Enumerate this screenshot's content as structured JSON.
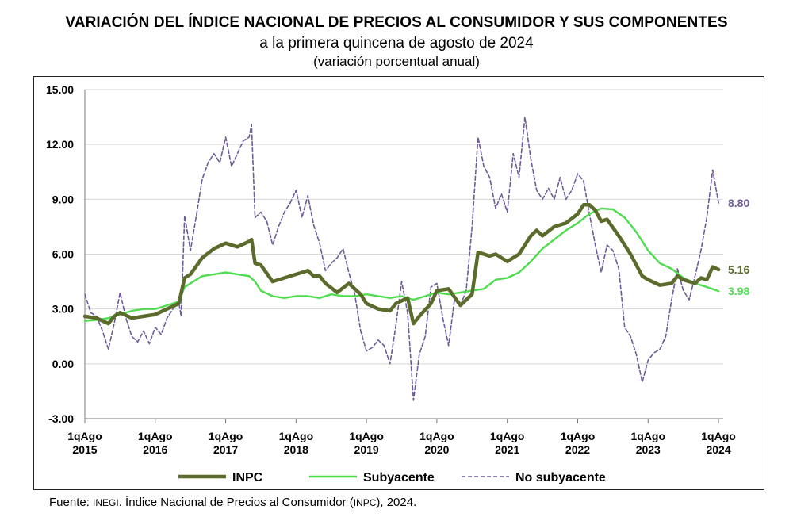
{
  "title": "VARIACIÓN DEL ÍNDICE NACIONAL DE PRECIOS AL CONSUMIDOR Y SUS COMPONENTES",
  "subtitle": "a la primera quincena de agosto de 2024",
  "subtitle2": "(variación porcentual anual)",
  "source": {
    "prefix": "Fuente: ",
    "org": "INEGI",
    "middle": ". Índice Nacional de Precios al Consumidor (",
    "abbr": "INPC",
    "suffix": "), 2024."
  },
  "colors": {
    "inpc": "#5a6b2b",
    "subyacente": "#4fdc4f",
    "no_subyacente": "#6e5b99"
  },
  "chart_data": {
    "type": "line",
    "title": "VARIACIÓN DEL ÍNDICE NACIONAL DE PRECIOS AL CONSUMIDOR Y SUS COMPONENTES",
    "subtitle": "a la primera quincena de agosto de 2024",
    "ylabel": "(variación porcentual anual)",
    "ylim": [
      -3.0,
      15.0
    ],
    "yticks": [
      "15.00",
      "12.00",
      "9.00",
      "6.00",
      "3.00",
      "0.00",
      "-3.00"
    ],
    "xlim": [
      2015.583,
      2024.65
    ],
    "xticks": [
      {
        "x": 2015.583,
        "line1": "1qAgo",
        "line2": "2015"
      },
      {
        "x": 2016.583,
        "line1": "1qAgo",
        "line2": "2016"
      },
      {
        "x": 2017.583,
        "line1": "1qAgo",
        "line2": "2017"
      },
      {
        "x": 2018.583,
        "line1": "1qAgo",
        "line2": "2018"
      },
      {
        "x": 2019.583,
        "line1": "1qAgo",
        "line2": "2019"
      },
      {
        "x": 2020.583,
        "line1": "1qAgo",
        "line2": "2020"
      },
      {
        "x": 2021.583,
        "line1": "1qAgo",
        "line2": "2021"
      },
      {
        "x": 2022.583,
        "line1": "1qAgo",
        "line2": "2022"
      },
      {
        "x": 2023.583,
        "line1": "1qAgo",
        "line2": "2023"
      },
      {
        "x": 2024.583,
        "line1": "1qAgo",
        "line2": "2024"
      }
    ],
    "grid": "horizontal",
    "legend": "bottom",
    "series": [
      {
        "name": "INPC",
        "key": "inpc",
        "style": "solid-thick",
        "end_label": "5.16",
        "points": [
          [
            2015.583,
            2.6
          ],
          [
            2015.75,
            2.5
          ],
          [
            2015.917,
            2.2
          ],
          [
            2016.0,
            2.6
          ],
          [
            2016.083,
            2.8
          ],
          [
            2016.25,
            2.5
          ],
          [
            2016.417,
            2.6
          ],
          [
            2016.583,
            2.7
          ],
          [
            2016.75,
            3.0
          ],
          [
            2016.917,
            3.3
          ],
          [
            2017.0,
            4.7
          ],
          [
            2017.083,
            4.9
          ],
          [
            2017.25,
            5.8
          ],
          [
            2017.417,
            6.3
          ],
          [
            2017.583,
            6.6
          ],
          [
            2017.75,
            6.4
          ],
          [
            2017.917,
            6.7
          ],
          [
            2017.95,
            6.8
          ],
          [
            2018.0,
            5.5
          ],
          [
            2018.083,
            5.4
          ],
          [
            2018.25,
            4.5
          ],
          [
            2018.417,
            4.7
          ],
          [
            2018.583,
            4.9
          ],
          [
            2018.75,
            5.1
          ],
          [
            2018.833,
            4.8
          ],
          [
            2018.917,
            4.8
          ],
          [
            2019.0,
            4.4
          ],
          [
            2019.167,
            3.9
          ],
          [
            2019.333,
            4.4
          ],
          [
            2019.5,
            3.8
          ],
          [
            2019.583,
            3.3
          ],
          [
            2019.75,
            3.0
          ],
          [
            2019.917,
            2.9
          ],
          [
            2020.0,
            3.3
          ],
          [
            2020.167,
            3.6
          ],
          [
            2020.25,
            2.2
          ],
          [
            2020.333,
            2.6
          ],
          [
            2020.5,
            3.3
          ],
          [
            2020.583,
            4.0
          ],
          [
            2020.75,
            4.1
          ],
          [
            2020.917,
            3.2
          ],
          [
            2021.0,
            3.5
          ],
          [
            2021.083,
            3.8
          ],
          [
            2021.167,
            6.1
          ],
          [
            2021.333,
            5.9
          ],
          [
            2021.417,
            6.0
          ],
          [
            2021.583,
            5.6
          ],
          [
            2021.75,
            6.0
          ],
          [
            2021.917,
            7.0
          ],
          [
            2022.0,
            7.3
          ],
          [
            2022.083,
            7.0
          ],
          [
            2022.25,
            7.5
          ],
          [
            2022.417,
            7.7
          ],
          [
            2022.583,
            8.2
          ],
          [
            2022.667,
            8.7
          ],
          [
            2022.75,
            8.7
          ],
          [
            2022.833,
            8.4
          ],
          [
            2022.917,
            7.8
          ],
          [
            2023.0,
            7.9
          ],
          [
            2023.167,
            7.0
          ],
          [
            2023.333,
            6.0
          ],
          [
            2023.5,
            4.8
          ],
          [
            2023.583,
            4.6
          ],
          [
            2023.75,
            4.3
          ],
          [
            2023.917,
            4.4
          ],
          [
            2024.0,
            4.8
          ],
          [
            2024.083,
            4.6
          ],
          [
            2024.25,
            4.4
          ],
          [
            2024.333,
            4.7
          ],
          [
            2024.417,
            4.6
          ],
          [
            2024.5,
            5.3
          ],
          [
            2024.583,
            5.16
          ]
        ]
      },
      {
        "name": "Subyacente",
        "key": "subyacente",
        "style": "solid",
        "end_label": "3.98",
        "points": [
          [
            2015.583,
            2.35
          ],
          [
            2015.75,
            2.4
          ],
          [
            2015.917,
            2.5
          ],
          [
            2016.083,
            2.7
          ],
          [
            2016.25,
            2.9
          ],
          [
            2016.417,
            3.0
          ],
          [
            2016.583,
            3.0
          ],
          [
            2016.75,
            3.2
          ],
          [
            2016.917,
            3.4
          ],
          [
            2017.0,
            4.2
          ],
          [
            2017.083,
            4.4
          ],
          [
            2017.25,
            4.8
          ],
          [
            2017.417,
            4.9
          ],
          [
            2017.583,
            5.0
          ],
          [
            2017.75,
            4.9
          ],
          [
            2017.917,
            4.8
          ],
          [
            2018.0,
            4.5
          ],
          [
            2018.083,
            4.0
          ],
          [
            2018.25,
            3.7
          ],
          [
            2018.417,
            3.6
          ],
          [
            2018.583,
            3.7
          ],
          [
            2018.75,
            3.7
          ],
          [
            2018.917,
            3.6
          ],
          [
            2019.083,
            3.8
          ],
          [
            2019.25,
            3.7
          ],
          [
            2019.417,
            3.7
          ],
          [
            2019.583,
            3.8
          ],
          [
            2019.75,
            3.7
          ],
          [
            2019.917,
            3.6
          ],
          [
            2020.083,
            3.7
          ],
          [
            2020.25,
            3.5
          ],
          [
            2020.417,
            3.7
          ],
          [
            2020.583,
            3.9
          ],
          [
            2020.75,
            3.8
          ],
          [
            2020.917,
            3.9
          ],
          [
            2021.083,
            4.0
          ],
          [
            2021.25,
            4.1
          ],
          [
            2021.417,
            4.6
          ],
          [
            2021.583,
            4.7
          ],
          [
            2021.75,
            5.0
          ],
          [
            2021.917,
            5.6
          ],
          [
            2022.083,
            6.3
          ],
          [
            2022.25,
            6.8
          ],
          [
            2022.417,
            7.3
          ],
          [
            2022.583,
            7.7
          ],
          [
            2022.75,
            8.2
          ],
          [
            2022.917,
            8.5
          ],
          [
            2023.083,
            8.45
          ],
          [
            2023.25,
            8.0
          ],
          [
            2023.417,
            7.2
          ],
          [
            2023.583,
            6.2
          ],
          [
            2023.75,
            5.5
          ],
          [
            2023.917,
            5.2
          ],
          [
            2024.083,
            4.7
          ],
          [
            2024.25,
            4.4
          ],
          [
            2024.417,
            4.2
          ],
          [
            2024.583,
            3.98
          ]
        ]
      },
      {
        "name": "No subyacente",
        "key": "no_subyacente",
        "style": "dashed",
        "end_label": "8.80",
        "points": [
          [
            2015.583,
            3.8
          ],
          [
            2015.667,
            2.8
          ],
          [
            2015.75,
            2.6
          ],
          [
            2015.833,
            1.8
          ],
          [
            2015.917,
            0.8
          ],
          [
            2016.0,
            2.2
          ],
          [
            2016.083,
            3.9
          ],
          [
            2016.167,
            2.5
          ],
          [
            2016.25,
            1.5
          ],
          [
            2016.333,
            1.2
          ],
          [
            2016.417,
            1.8
          ],
          [
            2016.5,
            1.1
          ],
          [
            2016.583,
            2.0
          ],
          [
            2016.667,
            1.6
          ],
          [
            2016.75,
            2.5
          ],
          [
            2016.833,
            3.0
          ],
          [
            2016.917,
            3.4
          ],
          [
            2016.95,
            2.6
          ],
          [
            2017.0,
            8.1
          ],
          [
            2017.083,
            6.2
          ],
          [
            2017.167,
            8.1
          ],
          [
            2017.25,
            10.1
          ],
          [
            2017.333,
            11.0
          ],
          [
            2017.417,
            11.5
          ],
          [
            2017.5,
            11.0
          ],
          [
            2017.583,
            12.4
          ],
          [
            2017.667,
            10.8
          ],
          [
            2017.75,
            11.5
          ],
          [
            2017.833,
            12.2
          ],
          [
            2017.917,
            12.4
          ],
          [
            2017.95,
            13.1
          ],
          [
            2018.0,
            8.0
          ],
          [
            2018.083,
            8.3
          ],
          [
            2018.167,
            7.8
          ],
          [
            2018.25,
            6.5
          ],
          [
            2018.333,
            7.5
          ],
          [
            2018.417,
            8.3
          ],
          [
            2018.5,
            8.8
          ],
          [
            2018.583,
            9.5
          ],
          [
            2018.667,
            8.0
          ],
          [
            2018.75,
            9.2
          ],
          [
            2018.833,
            7.6
          ],
          [
            2018.917,
            6.6
          ],
          [
            2019.0,
            5.1
          ],
          [
            2019.083,
            5.5
          ],
          [
            2019.167,
            5.8
          ],
          [
            2019.25,
            6.3
          ],
          [
            2019.333,
            5.0
          ],
          [
            2019.417,
            3.8
          ],
          [
            2019.5,
            1.8
          ],
          [
            2019.583,
            0.7
          ],
          [
            2019.667,
            0.9
          ],
          [
            2019.75,
            1.3
          ],
          [
            2019.833,
            1.0
          ],
          [
            2019.917,
            0.0
          ],
          [
            2020.0,
            2.1
          ],
          [
            2020.083,
            4.5
          ],
          [
            2020.167,
            2.8
          ],
          [
            2020.25,
            -2.0
          ],
          [
            2020.333,
            0.5
          ],
          [
            2020.417,
            1.5
          ],
          [
            2020.5,
            4.2
          ],
          [
            2020.583,
            4.4
          ],
          [
            2020.667,
            2.5
          ],
          [
            2020.75,
            1.0
          ],
          [
            2020.833,
            3.5
          ],
          [
            2020.917,
            3.2
          ],
          [
            2021.0,
            4.0
          ],
          [
            2021.083,
            7.5
          ],
          [
            2021.167,
            12.4
          ],
          [
            2021.25,
            10.8
          ],
          [
            2021.333,
            10.2
          ],
          [
            2021.417,
            8.5
          ],
          [
            2021.5,
            9.3
          ],
          [
            2021.583,
            8.3
          ],
          [
            2021.667,
            11.5
          ],
          [
            2021.75,
            10.2
          ],
          [
            2021.833,
            13.5
          ],
          [
            2021.917,
            11.2
          ],
          [
            2022.0,
            9.5
          ],
          [
            2022.083,
            9.0
          ],
          [
            2022.167,
            9.6
          ],
          [
            2022.25,
            9.0
          ],
          [
            2022.333,
            10.2
          ],
          [
            2022.417,
            9.0
          ],
          [
            2022.5,
            9.5
          ],
          [
            2022.583,
            10.4
          ],
          [
            2022.667,
            10.0
          ],
          [
            2022.75,
            8.2
          ],
          [
            2022.833,
            6.5
          ],
          [
            2022.917,
            5.0
          ],
          [
            2023.0,
            6.5
          ],
          [
            2023.083,
            6.2
          ],
          [
            2023.167,
            5.2
          ],
          [
            2023.25,
            2.0
          ],
          [
            2023.333,
            1.5
          ],
          [
            2023.417,
            0.5
          ],
          [
            2023.5,
            -1.0
          ],
          [
            2023.583,
            0.2
          ],
          [
            2023.667,
            0.6
          ],
          [
            2023.75,
            0.8
          ],
          [
            2023.833,
            1.5
          ],
          [
            2023.917,
            3.5
          ],
          [
            2024.0,
            5.2
          ],
          [
            2024.083,
            4.0
          ],
          [
            2024.167,
            3.5
          ],
          [
            2024.25,
            4.8
          ],
          [
            2024.333,
            6.2
          ],
          [
            2024.417,
            8.0
          ],
          [
            2024.5,
            10.6
          ],
          [
            2024.583,
            8.8
          ]
        ]
      }
    ]
  }
}
